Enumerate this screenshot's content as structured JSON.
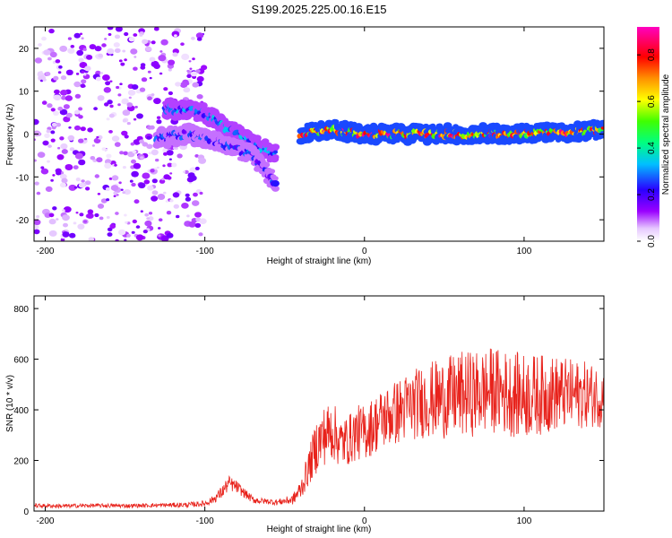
{
  "title": "S199.2025.225.00.16.E15",
  "chart_data": [
    {
      "type": "heatmap",
      "title": "S199.2025.225.00.16.E15",
      "xlabel": "Height of straight line (km)",
      "ylabel": "Frequency (Hz)",
      "xlim": [
        -207,
        150
      ],
      "ylim": [
        -25,
        25
      ],
      "xticks": [
        -200,
        -100,
        0,
        100
      ],
      "xtick_labels": [
        "-200",
        "-100",
        "0",
        "100"
      ],
      "yticks": [
        -20,
        -10,
        0,
        10,
        20
      ],
      "ytick_labels": [
        "-20",
        "-10",
        "0",
        "10",
        "20"
      ],
      "colorbar": {
        "label": "Normalized spectral amplitude",
        "range": [
          0,
          0.92
        ],
        "ticks": [
          0.0,
          0.2,
          0.4,
          0.6,
          0.8
        ],
        "tick_labels": [
          "0.0",
          "0.2",
          "0.4",
          "0.6",
          "0.8"
        ]
      },
      "features": [
        {
          "name": "noise",
          "x_range": [
            -207,
            -100
          ],
          "f_range": [
            -25,
            25
          ],
          "amplitude": 0.12
        },
        {
          "name": "chirp-branch-upper",
          "x": [
            -125,
            -100,
            -85,
            -70,
            -55
          ],
          "f": [
            6,
            5,
            1,
            -2,
            -5
          ],
          "amplitude": 0.3
        },
        {
          "name": "chirp-branch-lower",
          "x": [
            -130,
            -110,
            -90,
            -70,
            -55
          ],
          "f": [
            -1,
            0,
            -2,
            -5,
            -12
          ],
          "amplitude": 0.25
        },
        {
          "name": "steady-line",
          "x": [
            -40,
            -20,
            0,
            50,
            100,
            150
          ],
          "f": [
            0,
            1,
            0,
            0,
            0,
            1
          ],
          "amplitude": 0.75
        }
      ]
    },
    {
      "type": "line",
      "xlabel": "Height of straight line (km)",
      "ylabel": "SNR (10 * v/v)",
      "xlim": [
        -207,
        150
      ],
      "ylim": [
        0,
        850
      ],
      "xticks": [
        -200,
        -100,
        0,
        100
      ],
      "xtick_labels": [
        "-200",
        "-100",
        "0",
        "100"
      ],
      "yticks": [
        0,
        200,
        400,
        600,
        800
      ],
      "ytick_labels": [
        "0",
        "200",
        "400",
        "600",
        "800"
      ],
      "series": [
        {
          "name": "SNR",
          "color": "#e8221b",
          "x": [
            -207,
            -190,
            -170,
            -150,
            -130,
            -110,
            -100,
            -95,
            -90,
            -85,
            -80,
            -75,
            -70,
            -65,
            -60,
            -55,
            -50,
            -45,
            -40,
            -35,
            -30,
            -25,
            -20,
            -15,
            -10,
            -5,
            0,
            10,
            20,
            30,
            40,
            50,
            60,
            70,
            80,
            90,
            100,
            110,
            120,
            130,
            140,
            150
          ],
          "y": [
            22,
            20,
            22,
            21,
            23,
            25,
            30,
            45,
            70,
            110,
            95,
            70,
            45,
            40,
            38,
            35,
            40,
            45,
            85,
            170,
            260,
            300,
            320,
            270,
            280,
            310,
            310,
            360,
            390,
            420,
            440,
            445,
            460,
            465,
            480,
            465,
            455,
            460,
            465,
            460,
            460,
            450
          ],
          "spread": [
            8,
            8,
            8,
            8,
            8,
            10,
            12,
            15,
            25,
            30,
            25,
            18,
            15,
            12,
            12,
            12,
            15,
            20,
            40,
            70,
            110,
            120,
            120,
            100,
            100,
            110,
            110,
            120,
            130,
            140,
            150,
            160,
            170,
            170,
            170,
            170,
            170,
            160,
            150,
            140,
            130,
            120
          ]
        }
      ]
    }
  ]
}
